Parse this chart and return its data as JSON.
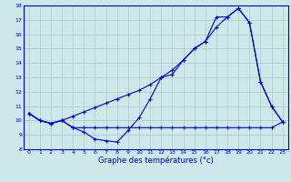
{
  "hours": [
    0,
    1,
    2,
    3,
    4,
    5,
    6,
    7,
    8,
    9,
    10,
    11,
    12,
    13,
    14,
    15,
    16,
    17,
    18,
    19,
    20,
    21,
    22,
    23
  ],
  "temp": [
    10.5,
    10.0,
    9.8,
    10.0,
    9.5,
    9.2,
    8.7,
    8.6,
    8.5,
    9.3,
    10.2,
    11.5,
    13.0,
    13.2,
    14.2,
    15.0,
    15.5,
    17.2,
    17.2,
    17.8,
    16.8,
    12.7,
    11.0,
    9.9
  ],
  "temp_min": [
    10.5,
    10.0,
    9.8,
    10.0,
    9.5,
    9.5,
    9.5,
    9.5,
    9.5,
    9.5,
    9.5,
    9.5,
    9.5,
    9.5,
    9.5,
    9.5,
    9.5,
    9.5,
    9.5,
    9.5,
    9.5,
    9.5,
    9.5,
    9.9
  ],
  "temp_max": [
    10.5,
    10.0,
    9.8,
    10.0,
    10.3,
    10.6,
    10.9,
    11.2,
    11.5,
    11.8,
    12.1,
    12.5,
    13.0,
    13.5,
    14.2,
    15.0,
    15.5,
    16.5,
    17.2,
    17.8,
    16.8,
    12.7,
    11.0,
    9.9
  ],
  "line_color": "#0000cc",
  "bg_color": "#cce8e8",
  "grid_color": "#aacccc",
  "xlabel": "Graphe des températures (°c)",
  "ylim": [
    8,
    18
  ],
  "xlim": [
    -0.5,
    23.5
  ],
  "yticks": [
    8,
    9,
    10,
    11,
    12,
    13,
    14,
    15,
    16,
    17,
    18
  ],
  "xticks": [
    0,
    1,
    2,
    3,
    4,
    5,
    6,
    7,
    8,
    9,
    10,
    11,
    12,
    13,
    14,
    15,
    16,
    17,
    18,
    19,
    20,
    21,
    22,
    23
  ]
}
